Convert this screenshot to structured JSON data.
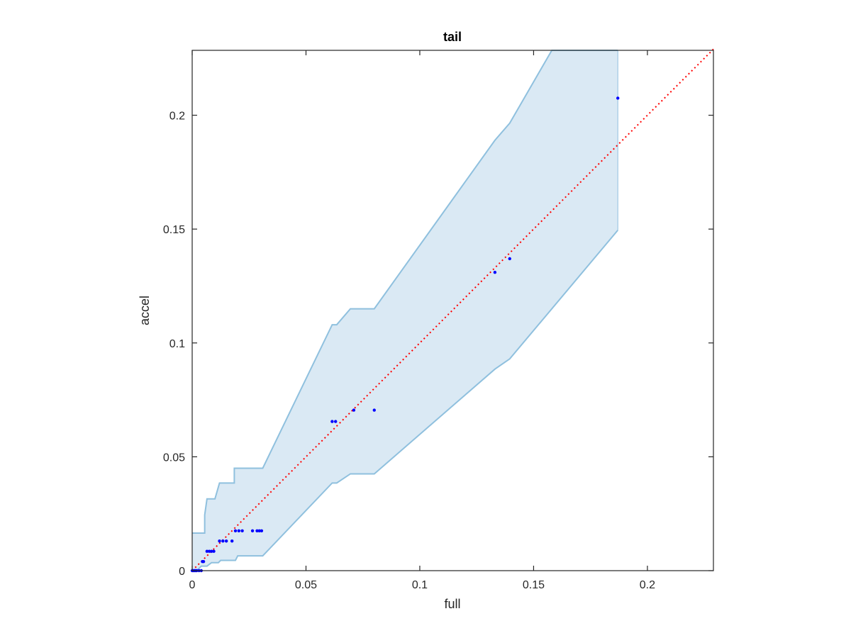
{
  "chart_data": {
    "type": "scatter",
    "title": "tail",
    "xlabel": "full",
    "ylabel": "accel",
    "xlim": [
      0,
      0.229
    ],
    "ylim": [
      0,
      0.2285
    ],
    "grid": false,
    "xticks": [
      0,
      0.05,
      0.1,
      0.15,
      0.2
    ],
    "yticks": [
      0,
      0.05,
      0.1,
      0.15,
      0.2
    ],
    "xtick_labels": [
      "0",
      "0.05",
      "0.1",
      "0.15",
      "0.2"
    ],
    "ytick_labels": [
      "0",
      "0.05",
      "0.1",
      "0.15",
      "0.2"
    ],
    "colors": {
      "points": "#0000ff",
      "band_fill": "#dae9f4",
      "band_edge": "#8fc0de",
      "reference_line": "#ff0000",
      "axes": "#262626"
    },
    "points": [
      {
        "x": 0.0,
        "y": 0.0
      },
      {
        "x": 0.0005,
        "y": 0.0
      },
      {
        "x": 0.001,
        "y": 0.0
      },
      {
        "x": 0.0015,
        "y": 0.0
      },
      {
        "x": 0.002,
        "y": 0.0
      },
      {
        "x": 0.003,
        "y": 0.0
      },
      {
        "x": 0.004,
        "y": 0.0
      },
      {
        "x": 0.0045,
        "y": 0.004
      },
      {
        "x": 0.005,
        "y": 0.004
      },
      {
        "x": 0.0065,
        "y": 0.0085
      },
      {
        "x": 0.0075,
        "y": 0.0085
      },
      {
        "x": 0.0085,
        "y": 0.0085
      },
      {
        "x": 0.0095,
        "y": 0.0085
      },
      {
        "x": 0.012,
        "y": 0.013
      },
      {
        "x": 0.0135,
        "y": 0.013
      },
      {
        "x": 0.015,
        "y": 0.013
      },
      {
        "x": 0.0175,
        "y": 0.013
      },
      {
        "x": 0.019,
        "y": 0.0175
      },
      {
        "x": 0.0205,
        "y": 0.0175
      },
      {
        "x": 0.022,
        "y": 0.0175
      },
      {
        "x": 0.0265,
        "y": 0.0175
      },
      {
        "x": 0.0285,
        "y": 0.0175
      },
      {
        "x": 0.0295,
        "y": 0.0175
      },
      {
        "x": 0.0305,
        "y": 0.0175
      },
      {
        "x": 0.0615,
        "y": 0.0655
      },
      {
        "x": 0.063,
        "y": 0.0655
      },
      {
        "x": 0.071,
        "y": 0.0705
      },
      {
        "x": 0.08,
        "y": 0.0705
      },
      {
        "x": 0.133,
        "y": 0.131
      },
      {
        "x": 0.1395,
        "y": 0.137
      },
      {
        "x": 0.187,
        "y": 0.2075
      }
    ],
    "band_upper": [
      [
        0.0,
        0.0165
      ],
      [
        0.0055,
        0.0165
      ],
      [
        0.0055,
        0.0245
      ],
      [
        0.0065,
        0.0315
      ],
      [
        0.01,
        0.0315
      ],
      [
        0.012,
        0.0385
      ],
      [
        0.0185,
        0.0385
      ],
      [
        0.0185,
        0.045
      ],
      [
        0.031,
        0.045
      ],
      [
        0.0615,
        0.108
      ],
      [
        0.0635,
        0.108
      ],
      [
        0.0695,
        0.115
      ],
      [
        0.08,
        0.115
      ],
      [
        0.133,
        0.189
      ],
      [
        0.1395,
        0.1965
      ],
      [
        0.158,
        0.2285
      ],
      [
        0.187,
        0.2285
      ]
    ],
    "band_lower": [
      [
        0.0,
        0.0
      ],
      [
        0.002,
        0.0
      ],
      [
        0.004,
        0.002
      ],
      [
        0.0065,
        0.002
      ],
      [
        0.0085,
        0.0035
      ],
      [
        0.0115,
        0.0035
      ],
      [
        0.0125,
        0.0045
      ],
      [
        0.019,
        0.0045
      ],
      [
        0.02,
        0.0065
      ],
      [
        0.031,
        0.0065
      ],
      [
        0.0615,
        0.0385
      ],
      [
        0.0635,
        0.0385
      ],
      [
        0.0695,
        0.0425
      ],
      [
        0.08,
        0.0425
      ],
      [
        0.133,
        0.0885
      ],
      [
        0.1395,
        0.093
      ],
      [
        0.187,
        0.1495
      ]
    ],
    "reference_line": [
      [
        0,
        0
      ],
      [
        0.229,
        0.229
      ]
    ]
  }
}
